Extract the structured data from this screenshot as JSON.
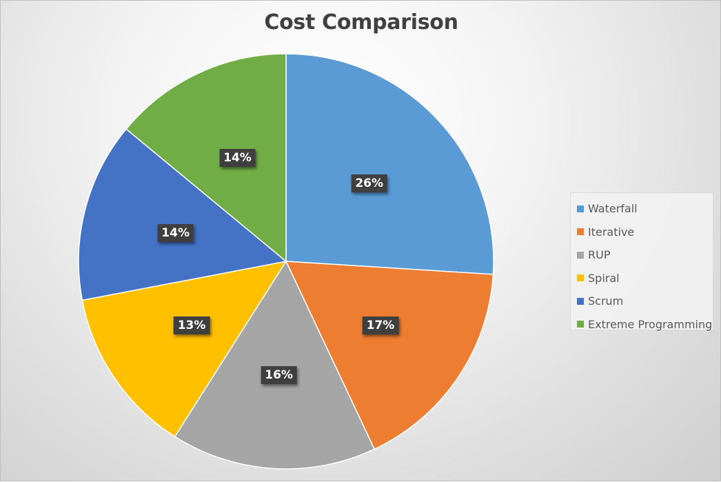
{
  "chart_data": {
    "type": "pie",
    "title": "Cost Comparison",
    "categories": [
      "Waterfall",
      "Iterative",
      "RUP",
      "Spiral",
      "Scrum",
      "Extreme Programming"
    ],
    "values": [
      26,
      17,
      16,
      13,
      14,
      14
    ],
    "unit": "%",
    "data_labels": [
      "26%",
      "17%",
      "16%",
      "13%",
      "14%",
      "14%"
    ],
    "colors": [
      "#5B9BD5",
      "#ED7D31",
      "#A5A5A5",
      "#FFC000",
      "#4472C4",
      "#70AD47"
    ],
    "legend_position": "right",
    "start_angle": "12 o'clock, clockwise"
  },
  "title": "Cost Comparison",
  "legend": {
    "items": [
      {
        "label": "Waterfall",
        "color": "#5B9BD5"
      },
      {
        "label": "Iterative",
        "color": "#ED7D31"
      },
      {
        "label": "RUP",
        "color": "#A5A5A5"
      },
      {
        "label": "Spiral",
        "color": "#FFC000"
      },
      {
        "label": "Scrum",
        "color": "#4472C4"
      },
      {
        "label": "Extreme Programming",
        "color": "#70AD47"
      }
    ]
  }
}
